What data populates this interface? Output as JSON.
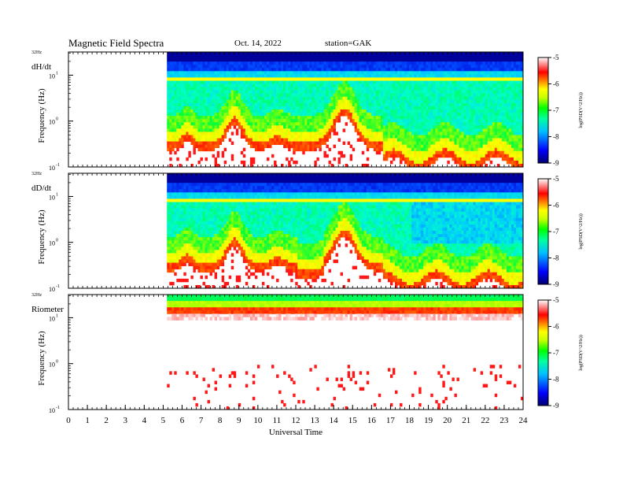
{
  "header": {
    "title": "Magnetic  Field  Spectra",
    "date": "Oct. 14, 2022",
    "station": "station=GAK"
  },
  "chart_data": [
    {
      "type": "heatmap",
      "panel": "dH/dt",
      "top_label": "32Hz",
      "ylabel": "Frequency  (Hz)",
      "y_ticks": [
        "10",
        "10",
        "10"
      ],
      "y_exponents": [
        "1",
        "0",
        "-1"
      ],
      "ylim": [
        0.1,
        32
      ],
      "y_scale": "log",
      "data_start_ut": 5.2,
      "colorbar": {
        "ticks": [
          "-5",
          "-6",
          "-7",
          "-8",
          "-9"
        ],
        "label": "log(PSD(V^2/Hz))",
        "range": [
          -9,
          -5
        ]
      }
    },
    {
      "type": "heatmap",
      "panel": "dD/dt",
      "top_label": "32Hz",
      "ylabel": "Frequency  (Hz)",
      "y_ticks": [
        "10",
        "10",
        "10"
      ],
      "y_exponents": [
        "1",
        "0",
        "-1"
      ],
      "ylim": [
        0.1,
        32
      ],
      "y_scale": "log",
      "data_start_ut": 5.2,
      "colorbar": {
        "ticks": [
          "-5",
          "-6",
          "-7",
          "-8",
          "-9"
        ],
        "label": "log(PSD(V^2/Hz))",
        "range": [
          -9,
          -5
        ]
      }
    },
    {
      "type": "heatmap",
      "panel": "Riometer",
      "top_label": "32Hz",
      "ylabel": "Frequency  (Hz)",
      "y_ticks": [
        "10",
        "10",
        "10"
      ],
      "y_exponents": [
        "1",
        "0",
        "-1"
      ],
      "ylim": [
        0.1,
        32
      ],
      "y_scale": "log",
      "data_start_ut": 5.2,
      "colorbar": {
        "ticks": [
          "-5",
          "-6",
          "-7",
          "-8",
          "-9"
        ],
        "label": "log(PSD(V^2/Hz))",
        "range": [
          -9,
          -5
        ]
      }
    }
  ],
  "x_axis": {
    "label": "Universal  Time",
    "ticks": [
      "0",
      "1",
      "2",
      "3",
      "4",
      "5",
      "6",
      "7",
      "8",
      "9",
      "10",
      "11",
      "12",
      "13",
      "14",
      "15",
      "16",
      "17",
      "18",
      "19",
      "20",
      "21",
      "22",
      "23",
      "24"
    ],
    "range": [
      0,
      24
    ]
  },
  "colors": {
    "scale": [
      "#00007a",
      "#0000ff",
      "#00ffff",
      "#00ff00",
      "#ffff00",
      "#ff0000",
      "#ffffff"
    ]
  }
}
